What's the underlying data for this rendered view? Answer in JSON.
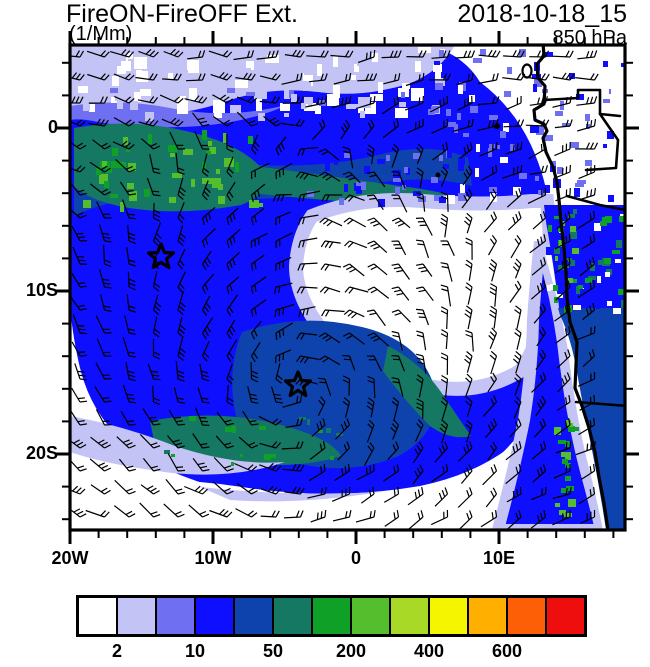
{
  "header": {
    "title": "FireON-FireOFF Ext.",
    "units": "(1/Mm)",
    "datetime": "2018-10-18_15",
    "level": "850 hPa"
  },
  "axes": {
    "lat": [
      "0",
      "10S",
      "20S"
    ],
    "lon": [
      "20W",
      "10W",
      "0",
      "10E"
    ]
  },
  "map": {
    "colors": {
      "white": "#ffffff",
      "light": "#c3c3f5",
      "periwinkle": "#6f6ff2",
      "blue": "#0f0fff",
      "navy": "#0e43ae",
      "teal": "#147862",
      "green": "#0fa028",
      "green2": "#55be2d",
      "outline": "#000000"
    },
    "markers": [
      {
        "symbol": "star",
        "lon": "13.7W",
        "lat": "8S"
      },
      {
        "symbol": "star",
        "lon": "4W",
        "lat": "15.8S"
      }
    ],
    "geography": [
      "African coastline",
      "country borders",
      "Gulf of Guinea islands"
    ]
  },
  "colorbar": {
    "colors": [
      "#ffffff",
      "#c3c3f5",
      "#6f6ff2",
      "#0f0fff",
      "#0e43ae",
      "#147862",
      "#0fa028",
      "#55be2d",
      "#a8d926",
      "#f5f500",
      "#ffaf00",
      "#fc5f05",
      "#ee0e0e"
    ],
    "labels": [
      "2",
      "10",
      "50",
      "200",
      "400",
      "600"
    ]
  },
  "chart_data": {
    "type": "heatmap",
    "title": "FireON-FireOFF Ext.",
    "units": "1/Mm",
    "level": "850 hPa",
    "valid_time": "2018-10-18_15",
    "lon_axis": {
      "ticks": [
        "20W",
        "10W",
        "0",
        "10E"
      ],
      "range_deg": [
        -20,
        19
      ]
    },
    "lat_axis": {
      "ticks": [
        "0",
        "10S",
        "20S"
      ],
      "range_deg": [
        -24.5,
        5
      ]
    },
    "contour_level_labels": [
      2,
      10,
      50,
      200,
      400,
      600
    ],
    "palette": [
      "#ffffff",
      "#c3c3f5",
      "#6f6ff2",
      "#0f0fff",
      "#0e43ae",
      "#147862",
      "#0fa028",
      "#55be2d",
      "#a8d926",
      "#f5f500",
      "#ffaf00",
      "#fc5f05",
      "#ee0e0e"
    ],
    "overlays": [
      "wind barbs",
      "two star markers",
      "coastlines and borders"
    ],
    "features": [
      {
        "name": "cyclonic gyre of enhanced extinction",
        "center": {
          "lon": "5W",
          "lat": "15S"
        },
        "approx_value_1perMm": "10-50"
      },
      {
        "name": "clear low-extinction eye",
        "center": {
          "lon": "7W",
          "lat": "10S"
        },
        "approx_value_1perMm": "<2"
      },
      {
        "name": "high extinction patch with green maxima",
        "center": {
          "lon": "16W",
          "lat": "2S"
        },
        "approx_value_1perMm": "100-300"
      },
      {
        "name": "coastal plume along Angola/Namibia coast",
        "center": {
          "lon": "11E",
          "lat": "18S"
        },
        "approx_value_1perMm": "50-200"
      },
      {
        "name": "low extinction region south-east quadrant",
        "center": {
          "lon": "2E",
          "lat": "20S"
        },
        "approx_value_1perMm": "<2"
      }
    ]
  }
}
